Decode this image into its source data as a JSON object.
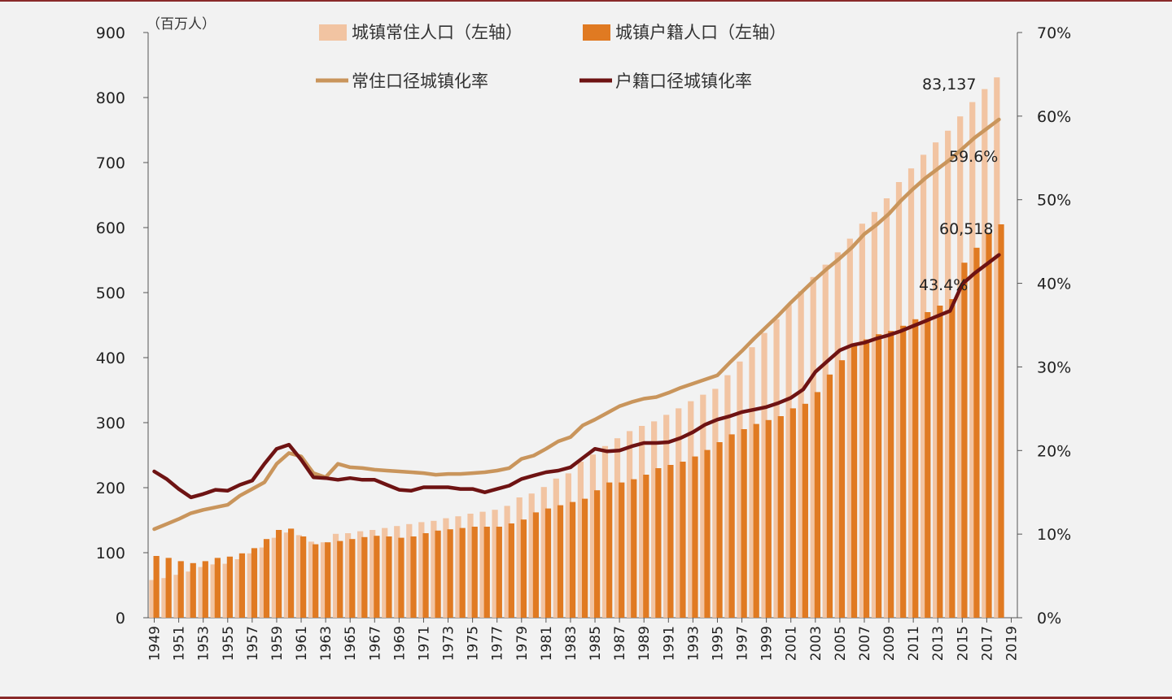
{
  "chart_data": {
    "type": "bar",
    "y_unit_label": "（百万人）",
    "ylim_left": [
      0,
      900
    ],
    "yticks_left": [
      "0",
      "100",
      "200",
      "300",
      "400",
      "500",
      "600",
      "700",
      "800",
      "900"
    ],
    "ylim_right": [
      0,
      70
    ],
    "yticks_right": [
      "0%",
      "10%",
      "20%",
      "30%",
      "40%",
      "50%",
      "60%",
      "70%"
    ],
    "x": [
      1949,
      1950,
      1951,
      1952,
      1953,
      1954,
      1955,
      1956,
      1957,
      1958,
      1959,
      1960,
      1961,
      1962,
      1963,
      1964,
      1965,
      1966,
      1967,
      1968,
      1969,
      1970,
      1971,
      1972,
      1973,
      1974,
      1975,
      1976,
      1977,
      1978,
      1979,
      1980,
      1981,
      1982,
      1983,
      1984,
      1985,
      1986,
      1987,
      1988,
      1989,
      1990,
      1991,
      1992,
      1993,
      1994,
      1995,
      1996,
      1997,
      1998,
      1999,
      2000,
      2001,
      2002,
      2003,
      2004,
      2005,
      2006,
      2007,
      2008,
      2009,
      2010,
      2011,
      2012,
      2013,
      2014,
      2015,
      2016,
      2017,
      2018
    ],
    "xtick_labels": [
      "1949",
      "1951",
      "1953",
      "1955",
      "1957",
      "1959",
      "1961",
      "1963",
      "1965",
      "1967",
      "1969",
      "1971",
      "1973",
      "1975",
      "1977",
      "1979",
      "1981",
      "1983",
      "1985",
      "1987",
      "1989",
      "1991",
      "1993",
      "1995",
      "1997",
      "1999",
      "2001",
      "2003",
      "2005",
      "2007",
      "2009",
      "2011",
      "2013",
      "2015",
      "2017",
      "2019"
    ],
    "grid": false,
    "legend_position": "top",
    "series": [
      {
        "name": "城镇常住人口（左轴）",
        "kind": "bar",
        "axis": "left",
        "color": "#f2c4a2",
        "values": [
          58,
          61,
          66,
          71,
          78,
          82,
          83,
          90,
          99,
          108,
          123,
          131,
          127,
          117,
          116,
          129,
          130,
          133,
          135,
          138,
          141,
          144,
          147,
          149,
          153,
          156,
          160,
          163,
          166,
          172,
          185,
          191,
          201,
          214,
          222,
          240,
          251,
          264,
          276,
          287,
          295,
          302,
          312,
          322,
          333,
          343,
          352,
          373,
          394,
          416,
          438,
          459,
          481,
          502,
          524,
          543,
          562,
          583,
          606,
          624,
          645,
          670,
          691,
          712,
          731,
          749,
          771,
          793,
          813,
          831
        ]
      },
      {
        "name": "城镇户籍人口（左轴）",
        "kind": "bar",
        "axis": "left",
        "color": "#e07a22",
        "values": [
          95,
          92,
          87,
          84,
          87,
          92,
          94,
          99,
          107,
          121,
          135,
          137,
          125,
          113,
          116,
          118,
          121,
          124,
          126,
          125,
          123,
          125,
          130,
          134,
          136,
          138,
          140,
          140,
          140,
          145,
          151,
          162,
          168,
          173,
          178,
          183,
          196,
          208,
          208,
          213,
          220,
          230,
          235,
          240,
          248,
          258,
          270,
          282,
          290,
          298,
          304,
          310,
          322,
          329,
          347,
          374,
          396,
          418,
          428,
          436,
          441,
          449,
          459,
          470,
          480,
          490,
          546,
          569,
          592,
          605
        ]
      },
      {
        "name": "常住口径城镇化率",
        "kind": "line",
        "axis": "right",
        "color": "#c9955c",
        "values": [
          10.6,
          11.2,
          11.8,
          12.5,
          12.9,
          13.2,
          13.5,
          14.6,
          15.4,
          16.2,
          18.4,
          19.7,
          19.3,
          17.3,
          16.8,
          18.4,
          18.0,
          17.9,
          17.7,
          17.6,
          17.5,
          17.4,
          17.3,
          17.1,
          17.2,
          17.2,
          17.3,
          17.4,
          17.6,
          17.9,
          19.0,
          19.4,
          20.2,
          21.1,
          21.6,
          23.0,
          23.7,
          24.5,
          25.3,
          25.8,
          26.2,
          26.4,
          26.9,
          27.5,
          28.0,
          28.5,
          29.0,
          30.5,
          31.9,
          33.4,
          34.8,
          36.2,
          37.7,
          39.1,
          40.5,
          41.8,
          43.0,
          44.3,
          45.9,
          47.0,
          48.3,
          49.9,
          51.3,
          52.6,
          53.7,
          54.8,
          56.1,
          57.4,
          58.5,
          59.6
        ]
      },
      {
        "name": "户籍口径城镇化率",
        "kind": "line",
        "axis": "right",
        "color": "#6e1313",
        "values": [
          17.5,
          16.6,
          15.4,
          14.4,
          14.8,
          15.3,
          15.2,
          15.9,
          16.4,
          18.4,
          20.2,
          20.7,
          18.9,
          16.8,
          16.7,
          16.5,
          16.7,
          16.5,
          16.5,
          15.9,
          15.3,
          15.2,
          15.6,
          15.6,
          15.6,
          15.4,
          15.4,
          15.0,
          15.4,
          15.8,
          16.6,
          17.0,
          17.4,
          17.6,
          18.0,
          19.1,
          20.2,
          19.9,
          20.0,
          20.5,
          20.9,
          20.9,
          21.0,
          21.5,
          22.2,
          23.1,
          23.7,
          24.1,
          24.6,
          24.9,
          25.2,
          25.7,
          26.3,
          27.3,
          29.4,
          30.7,
          32.0,
          32.6,
          32.9,
          33.4,
          33.8,
          34.3,
          34.9,
          35.5,
          36.1,
          36.7,
          39.9,
          41.2,
          42.3,
          43.4
        ]
      }
    ],
    "annotations": [
      "83,137",
      "59.6%",
      "60,518",
      "43.4%"
    ]
  }
}
